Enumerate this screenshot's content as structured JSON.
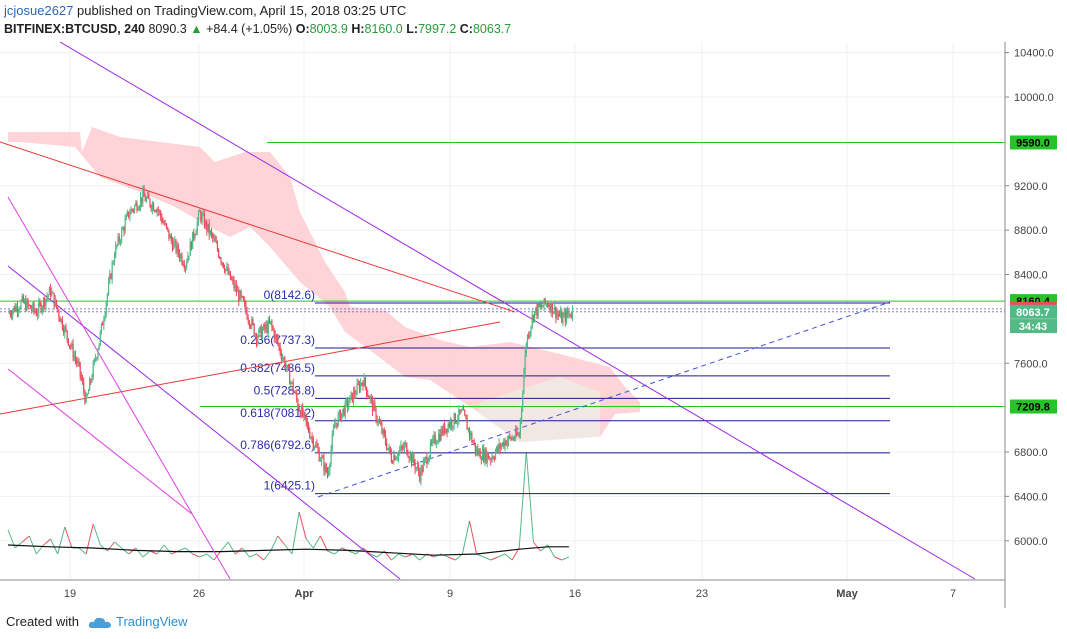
{
  "header": {
    "user": "jcjosue2627",
    "published_text": "published on TradingView.com, April 15, 2018 03:25 UTC",
    "symbol": "BITFINEX:BTCUSD, 240",
    "last": "8090.3",
    "change": "+84.4 (+1.05%)",
    "o_label": "O:",
    "o": "8003.9",
    "h_label": "H:",
    "h": "8160.0",
    "l_label": "L:",
    "l": "7997.2",
    "c_label": "C:",
    "c": "8063.7"
  },
  "footer": {
    "created_with": "Created with",
    "brand": "TradingView"
  },
  "colors": {
    "up": "#53b987",
    "down": "#eb4d5c",
    "cloud": "#ffcdd2",
    "fib": "#1a1a8c",
    "purple": "#9c27e8",
    "magenta": "#e040e0",
    "red": "#e53935",
    "green_line": "#27c427",
    "blue_dash": "#3f51d8",
    "axis": "#444444",
    "grid": "#eef1f5"
  },
  "chart_data": {
    "type": "candlestick",
    "x_ticks": [
      "19",
      "26",
      "Apr",
      "9",
      "16",
      "23",
      "May",
      "7"
    ],
    "y_ticks": [
      "10400.0",
      "10000.0",
      "9200.0",
      "8800.0",
      "8400.0",
      "7600.0",
      "6800.0",
      "6400.0",
      "6000.0"
    ],
    "ylim": [
      5700,
      10500
    ],
    "price_tags": [
      {
        "label": "9590.0",
        "value": 9590,
        "bg": "#27c427",
        "fg": "#000000"
      },
      {
        "label": "8160.4",
        "value": 8160.4,
        "bg": "#27c427",
        "fg": "#000000"
      },
      {
        "label": "8090.3",
        "value": 8090.3,
        "bg": "#eb4d5c",
        "fg": "#ffffff"
      },
      {
        "label": "8063.7",
        "value": 8063.7,
        "bg": "#53b987",
        "fg": "#ffffff"
      },
      {
        "label": "34:43",
        "value": 7935,
        "bg": "#53b987",
        "fg": "#ffffff"
      },
      {
        "label": "7209.8",
        "value": 7209.8,
        "bg": "#27c427",
        "fg": "#000000"
      }
    ],
    "fib_levels": [
      {
        "label": "0(8142.6)",
        "value": 8142.6
      },
      {
        "label": "0.236(7737.3)",
        "value": 7737.3
      },
      {
        "label": "0.382(7486.5)",
        "value": 7486.5
      },
      {
        "label": "0.5(7283.8)",
        "value": 7283.8
      },
      {
        "label": "0.618(7081.2)",
        "value": 7081.2
      },
      {
        "label": "0.786(6792.6)",
        "value": 6792.6
      },
      {
        "label": "1(6425.1)",
        "value": 6425.1
      }
    ],
    "horizontal_lines": [
      9590,
      8160.4,
      7209.8
    ],
    "price_path": [
      [
        0,
        8050
      ],
      [
        2,
        8150
      ],
      [
        4,
        8060
      ],
      [
        6,
        8250
      ],
      [
        8,
        7900
      ],
      [
        10,
        7550
      ],
      [
        11,
        7250
      ],
      [
        13,
        7850
      ],
      [
        15,
        8600
      ],
      [
        17,
        8950
      ],
      [
        19,
        9100
      ],
      [
        21,
        9000
      ],
      [
        23,
        8700
      ],
      [
        25,
        8500
      ],
      [
        27,
        8950
      ],
      [
        29,
        8700
      ],
      [
        31,
        8400
      ],
      [
        33,
        8150
      ],
      [
        35,
        7850
      ],
      [
        37,
        7950
      ],
      [
        39,
        7600
      ],
      [
        41,
        7200
      ],
      [
        43,
        6900
      ],
      [
        45,
        6600
      ],
      [
        46,
        7050
      ],
      [
        48,
        7250
      ],
      [
        50,
        7450
      ],
      [
        52,
        7100
      ],
      [
        54,
        6750
      ],
      [
        56,
        6850
      ],
      [
        58,
        6600
      ],
      [
        60,
        6900
      ],
      [
        62,
        7050
      ],
      [
        64,
        7150
      ],
      [
        66,
        6800
      ],
      [
        68,
        6750
      ],
      [
        70,
        6900
      ],
      [
        72,
        6950
      ],
      [
        73,
        7800
      ],
      [
        74,
        8050
      ],
      [
        76,
        8150
      ],
      [
        78,
        8000
      ],
      [
        79.5,
        8063.7
      ]
    ],
    "volume_path": [
      [
        0,
        70
      ],
      [
        1,
        40
      ],
      [
        2,
        50
      ],
      [
        3,
        60
      ],
      [
        4,
        30
      ],
      [
        5,
        45
      ],
      [
        6,
        55
      ],
      [
        7,
        30
      ],
      [
        8,
        75
      ],
      [
        9,
        40
      ],
      [
        10,
        40
      ],
      [
        11,
        30
      ],
      [
        12,
        80
      ],
      [
        13,
        45
      ],
      [
        14,
        35
      ],
      [
        15,
        50
      ],
      [
        16,
        40
      ],
      [
        17,
        30
      ],
      [
        18,
        40
      ],
      [
        19,
        25
      ],
      [
        20,
        35
      ],
      [
        21,
        30
      ],
      [
        22,
        45
      ],
      [
        23,
        30
      ],
      [
        24,
        35
      ],
      [
        25,
        40
      ],
      [
        26,
        30
      ],
      [
        27,
        25
      ],
      [
        28,
        30
      ],
      [
        29,
        20
      ],
      [
        30,
        35
      ],
      [
        31,
        50
      ],
      [
        32,
        30
      ],
      [
        33,
        40
      ],
      [
        34,
        25
      ],
      [
        35,
        30
      ],
      [
        36,
        20
      ],
      [
        37,
        35
      ],
      [
        38,
        60
      ],
      [
        39,
        45
      ],
      [
        40,
        30
      ],
      [
        41,
        100
      ],
      [
        42,
        55
      ],
      [
        43,
        40
      ],
      [
        44,
        60
      ],
      [
        45,
        35
      ],
      [
        46,
        30
      ],
      [
        47,
        40
      ],
      [
        48,
        35
      ],
      [
        49,
        30
      ],
      [
        50,
        40
      ],
      [
        51,
        30
      ],
      [
        52,
        25
      ],
      [
        53,
        35
      ],
      [
        54,
        20
      ],
      [
        55,
        30
      ],
      [
        56,
        25
      ],
      [
        57,
        30
      ],
      [
        58,
        20
      ],
      [
        59,
        30
      ],
      [
        60,
        25
      ],
      [
        61,
        30
      ],
      [
        62,
        25
      ],
      [
        63,
        20
      ],
      [
        64,
        30
      ],
      [
        65,
        85
      ],
      [
        66,
        30
      ],
      [
        67,
        25
      ],
      [
        68,
        20
      ],
      [
        69,
        25
      ],
      [
        70,
        30
      ],
      [
        71,
        20
      ],
      [
        72,
        40
      ],
      [
        73,
        200
      ],
      [
        74,
        50
      ],
      [
        75,
        35
      ],
      [
        76,
        45
      ],
      [
        77,
        25
      ],
      [
        78,
        20
      ],
      [
        79,
        25
      ]
    ],
    "volume_ma": [
      [
        0,
        45
      ],
      [
        6,
        42
      ],
      [
        12,
        40
      ],
      [
        18,
        36
      ],
      [
        24,
        34
      ],
      [
        30,
        34
      ],
      [
        36,
        36
      ],
      [
        42,
        38
      ],
      [
        48,
        36
      ],
      [
        54,
        32
      ],
      [
        60,
        28
      ],
      [
        66,
        30
      ],
      [
        72,
        38
      ],
      [
        76,
        42
      ],
      [
        79,
        42
      ]
    ]
  }
}
